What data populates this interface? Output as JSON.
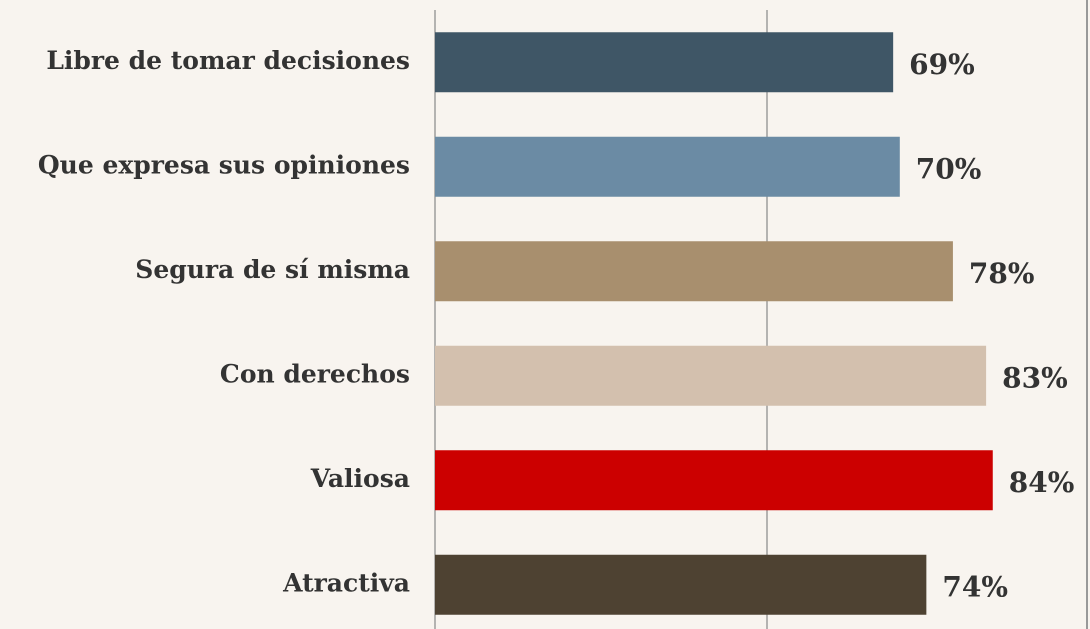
{
  "chart_data": {
    "type": "barh",
    "categories": [
      "Libre de tomar decisiones",
      "Que expresa sus opiniones",
      "Segura de sí misma",
      "Con derechos",
      "Valiosa",
      "Atractiva"
    ],
    "values": [
      69,
      70,
      78,
      83,
      84,
      74
    ],
    "value_labels": [
      "69%",
      "70%",
      "78%",
      "83%",
      "84%",
      "74%"
    ],
    "colors": [
      "#3f5666",
      "#6b8ba4",
      "#a88f6e",
      "#d3c0ae",
      "#cc0000",
      "#4e4232"
    ],
    "xlim": [
      0,
      100
    ],
    "xticks": [
      0,
      50
    ],
    "grid": true
  }
}
